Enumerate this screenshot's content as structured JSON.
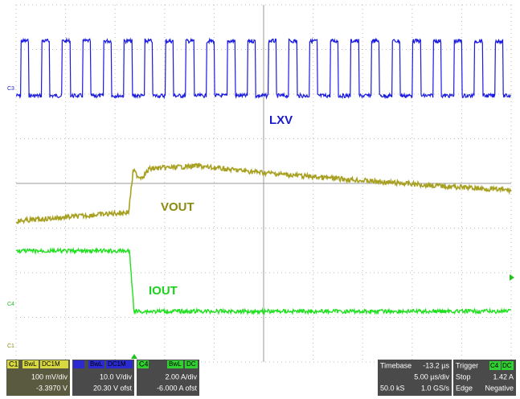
{
  "traces": {
    "lxv": "LXV",
    "vout": "VOUT",
    "iout": "IOUT"
  },
  "markers": {
    "c3": "C3",
    "c4": "C4",
    "c1": "C1"
  },
  "channels": [
    {
      "name": "C1",
      "bw": "BwL",
      "coupling": "DC1M",
      "scale": "100 mV/div",
      "offset": "-3.3970 V"
    },
    {
      "name": "",
      "bw": "BwL",
      "coupling": "DC1M",
      "scale": "10.0 V/div",
      "offset": "20.30 V ofst"
    },
    {
      "name": "C4",
      "bw": "BwL",
      "coupling": "DC",
      "scale": "2.00 A/div",
      "offset": "-6.000 A ofst"
    }
  ],
  "timebase": {
    "title": "Timebase",
    "delay": "-13.2 µs",
    "scale": "5.00 µs/div",
    "points": "50.0 kS",
    "rate": "1.0 GS/s"
  },
  "trigger": {
    "title": "Trigger",
    "source": "C4",
    "coupling": "DC",
    "mode": "Stop",
    "level": "1.42 A",
    "type": "Edge",
    "slope": "Negative"
  }
}
